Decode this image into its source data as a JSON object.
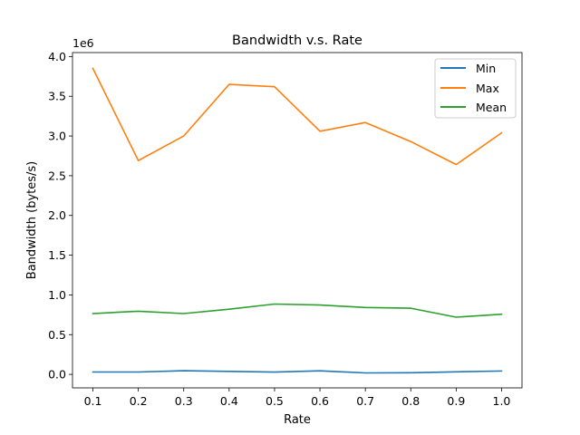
{
  "chart_data": {
    "type": "line",
    "title": "Bandwidth v.s. Rate",
    "xlabel": "Rate",
    "ylabel": "Bandwidth (bytes/s)",
    "y_offset_label": "1e6",
    "y_scale": 1000000,
    "x": [
      0.1,
      0.2,
      0.3,
      0.4,
      0.5,
      0.6,
      0.7,
      0.8,
      0.9,
      1.0
    ],
    "x_ticks": [
      "0.1",
      "0.2",
      "0.3",
      "0.4",
      "0.5",
      "0.6",
      "0.7",
      "0.8",
      "0.9",
      "1.0"
    ],
    "y_ticks": [
      "0.0",
      "0.5",
      "1.0",
      "1.5",
      "2.0",
      "2.5",
      "3.0",
      "3.5",
      "4.0"
    ],
    "y_tick_values": [
      0,
      500000,
      1000000,
      1500000,
      2000000,
      2500000,
      3000000,
      3500000,
      4000000
    ],
    "xlim": [
      0.055,
      1.045
    ],
    "ylim": [
      -170000,
      4050000
    ],
    "grid": false,
    "legend_position": "top-right",
    "series": [
      {
        "name": "Min",
        "color": "#1f77b4",
        "values": [
          30000,
          30000,
          45000,
          38000,
          28000,
          44000,
          18000,
          20000,
          32000,
          42000
        ]
      },
      {
        "name": "Max",
        "color": "#ff7f0e",
        "values": [
          3850000,
          2690000,
          3000000,
          3650000,
          3620000,
          3060000,
          3170000,
          2930000,
          2640000,
          3040000
        ]
      },
      {
        "name": "Mean",
        "color": "#2ca02c",
        "values": [
          765000,
          795000,
          765000,
          820000,
          885000,
          872000,
          842000,
          832000,
          720000,
          757000
        ]
      }
    ]
  }
}
